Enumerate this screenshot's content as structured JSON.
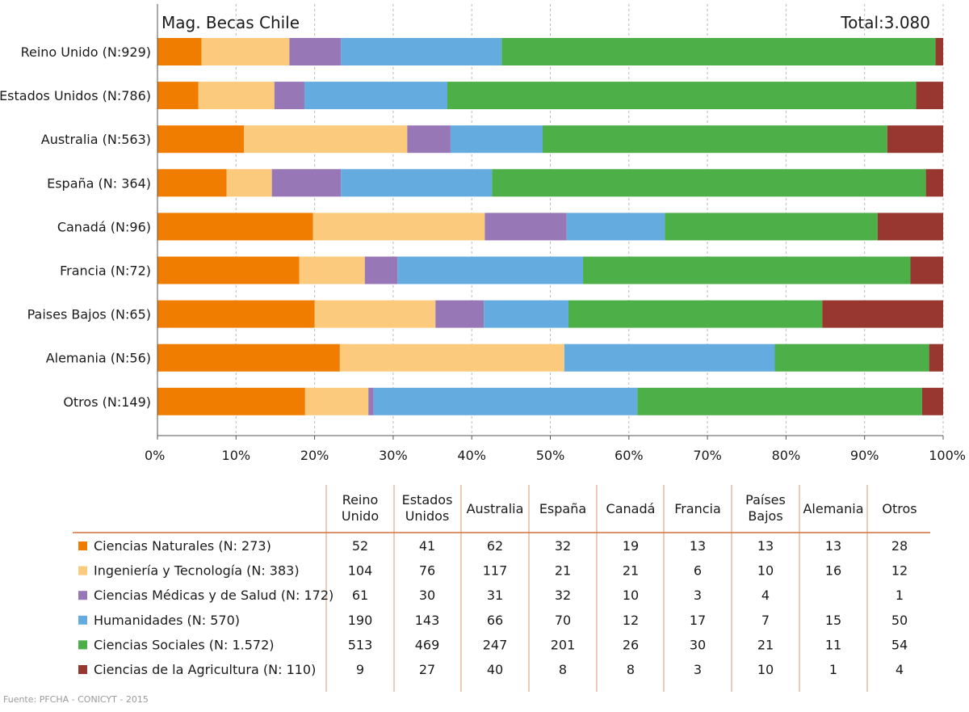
{
  "chart_data": {
    "type": "bar",
    "orientation": "horizontal",
    "stacked": true,
    "normalized": true,
    "title": "Mag. Becas Chile",
    "total_label": "Total:3.080",
    "categories": [
      "Reino Unido (N:929)",
      "Estados Unidos (N:786)",
      "Australia (N:563)",
      "España (N: 364)",
      "Canadá (N:96)",
      "Francia (N:72)",
      "Paises Bajos (N:65)",
      "Alemania (N:56)",
      "Otros (N:149)"
    ],
    "xlim": [
      0,
      100
    ],
    "xticks": [
      "0%",
      "10%",
      "20%",
      "30%",
      "40%",
      "50%",
      "60%",
      "70%",
      "80%",
      "90%",
      "100%"
    ],
    "grid": "vertical dashed",
    "series": [
      {
        "name": "Ciencias Naturales (N: 273)",
        "color": "#f07d00",
        "values": [
          52,
          41,
          62,
          32,
          19,
          13,
          13,
          13,
          28
        ]
      },
      {
        "name": "Ingeniería y Tecnología (N: 383)",
        "color": "#fcca7c",
        "values": [
          104,
          76,
          117,
          21,
          21,
          6,
          10,
          16,
          12
        ]
      },
      {
        "name": "Ciencias Médicas y de Salud (N: 172)",
        "color": "#9777b5",
        "values": [
          61,
          30,
          31,
          32,
          10,
          3,
          4,
          null,
          1
        ]
      },
      {
        "name": "Humanidades (N: 570)",
        "color": "#64abdf",
        "values": [
          190,
          143,
          66,
          70,
          12,
          17,
          7,
          15,
          50
        ]
      },
      {
        "name": "Ciencias Sociales (N: 1.572)",
        "color": "#4caf48",
        "values": [
          513,
          469,
          247,
          201,
          26,
          30,
          21,
          11,
          54
        ]
      },
      {
        "name": "Ciencias de la Agricultura (N: 110)",
        "color": "#973730",
        "values": [
          9,
          27,
          40,
          8,
          8,
          3,
          10,
          1,
          4
        ]
      }
    ]
  },
  "table": {
    "headers": [
      [
        "Reino",
        "Unido"
      ],
      [
        "Estados",
        "Unidos"
      ],
      [
        "Australia"
      ],
      [
        "España"
      ],
      [
        "Canadá"
      ],
      [
        "Francia"
      ],
      [
        "Países",
        "Bajos"
      ],
      [
        "Alemania"
      ],
      [
        "Otros"
      ]
    ],
    "header_rule_color": "#d4713a"
  },
  "source": "Fuente: PFCHA - CONICYT - 2015"
}
